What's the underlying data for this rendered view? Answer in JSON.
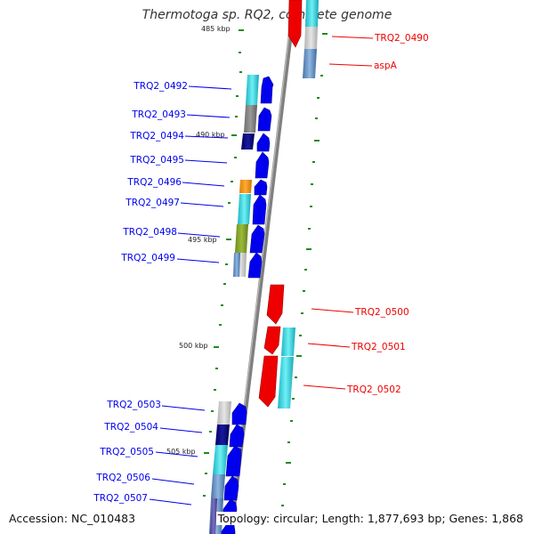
{
  "title": "Thermotoga sp. RQ2, complete genome",
  "footer": {
    "accession": "Accession: NC_010483",
    "summary": "Topology: circular; Length: 1,877,693 bp; Genes: 1,868"
  },
  "colors": {
    "forward": "#0000ff",
    "reverse": "#ff0000",
    "backbone": "#808080",
    "tick": "#1e8c1e"
  },
  "tick_labels": [
    "485 kbp",
    "490 kbp",
    "495 kbp",
    "500 kbp",
    "505 kbp"
  ],
  "genes": [
    {
      "label": "TRQ2_0490",
      "strand": "reverse"
    },
    {
      "label": "aspA",
      "strand": "reverse"
    },
    {
      "label": "TRQ2_0492",
      "strand": "forward"
    },
    {
      "label": "TRQ2_0493",
      "strand": "forward"
    },
    {
      "label": "TRQ2_0494",
      "strand": "forward"
    },
    {
      "label": "TRQ2_0495",
      "strand": "forward"
    },
    {
      "label": "TRQ2_0496",
      "strand": "forward"
    },
    {
      "label": "TRQ2_0497",
      "strand": "forward"
    },
    {
      "label": "TRQ2_0498",
      "strand": "forward"
    },
    {
      "label": "TRQ2_0499",
      "strand": "forward"
    },
    {
      "label": "TRQ2_0500",
      "strand": "reverse"
    },
    {
      "label": "TRQ2_0501",
      "strand": "reverse"
    },
    {
      "label": "TRQ2_0502",
      "strand": "reverse"
    },
    {
      "label": "TRQ2_0503",
      "strand": "forward"
    },
    {
      "label": "TRQ2_0504",
      "strand": "forward"
    },
    {
      "label": "TRQ2_0505",
      "strand": "forward"
    },
    {
      "label": "TRQ2_0506",
      "strand": "forward"
    },
    {
      "label": "TRQ2_0507",
      "strand": "forward"
    }
  ]
}
